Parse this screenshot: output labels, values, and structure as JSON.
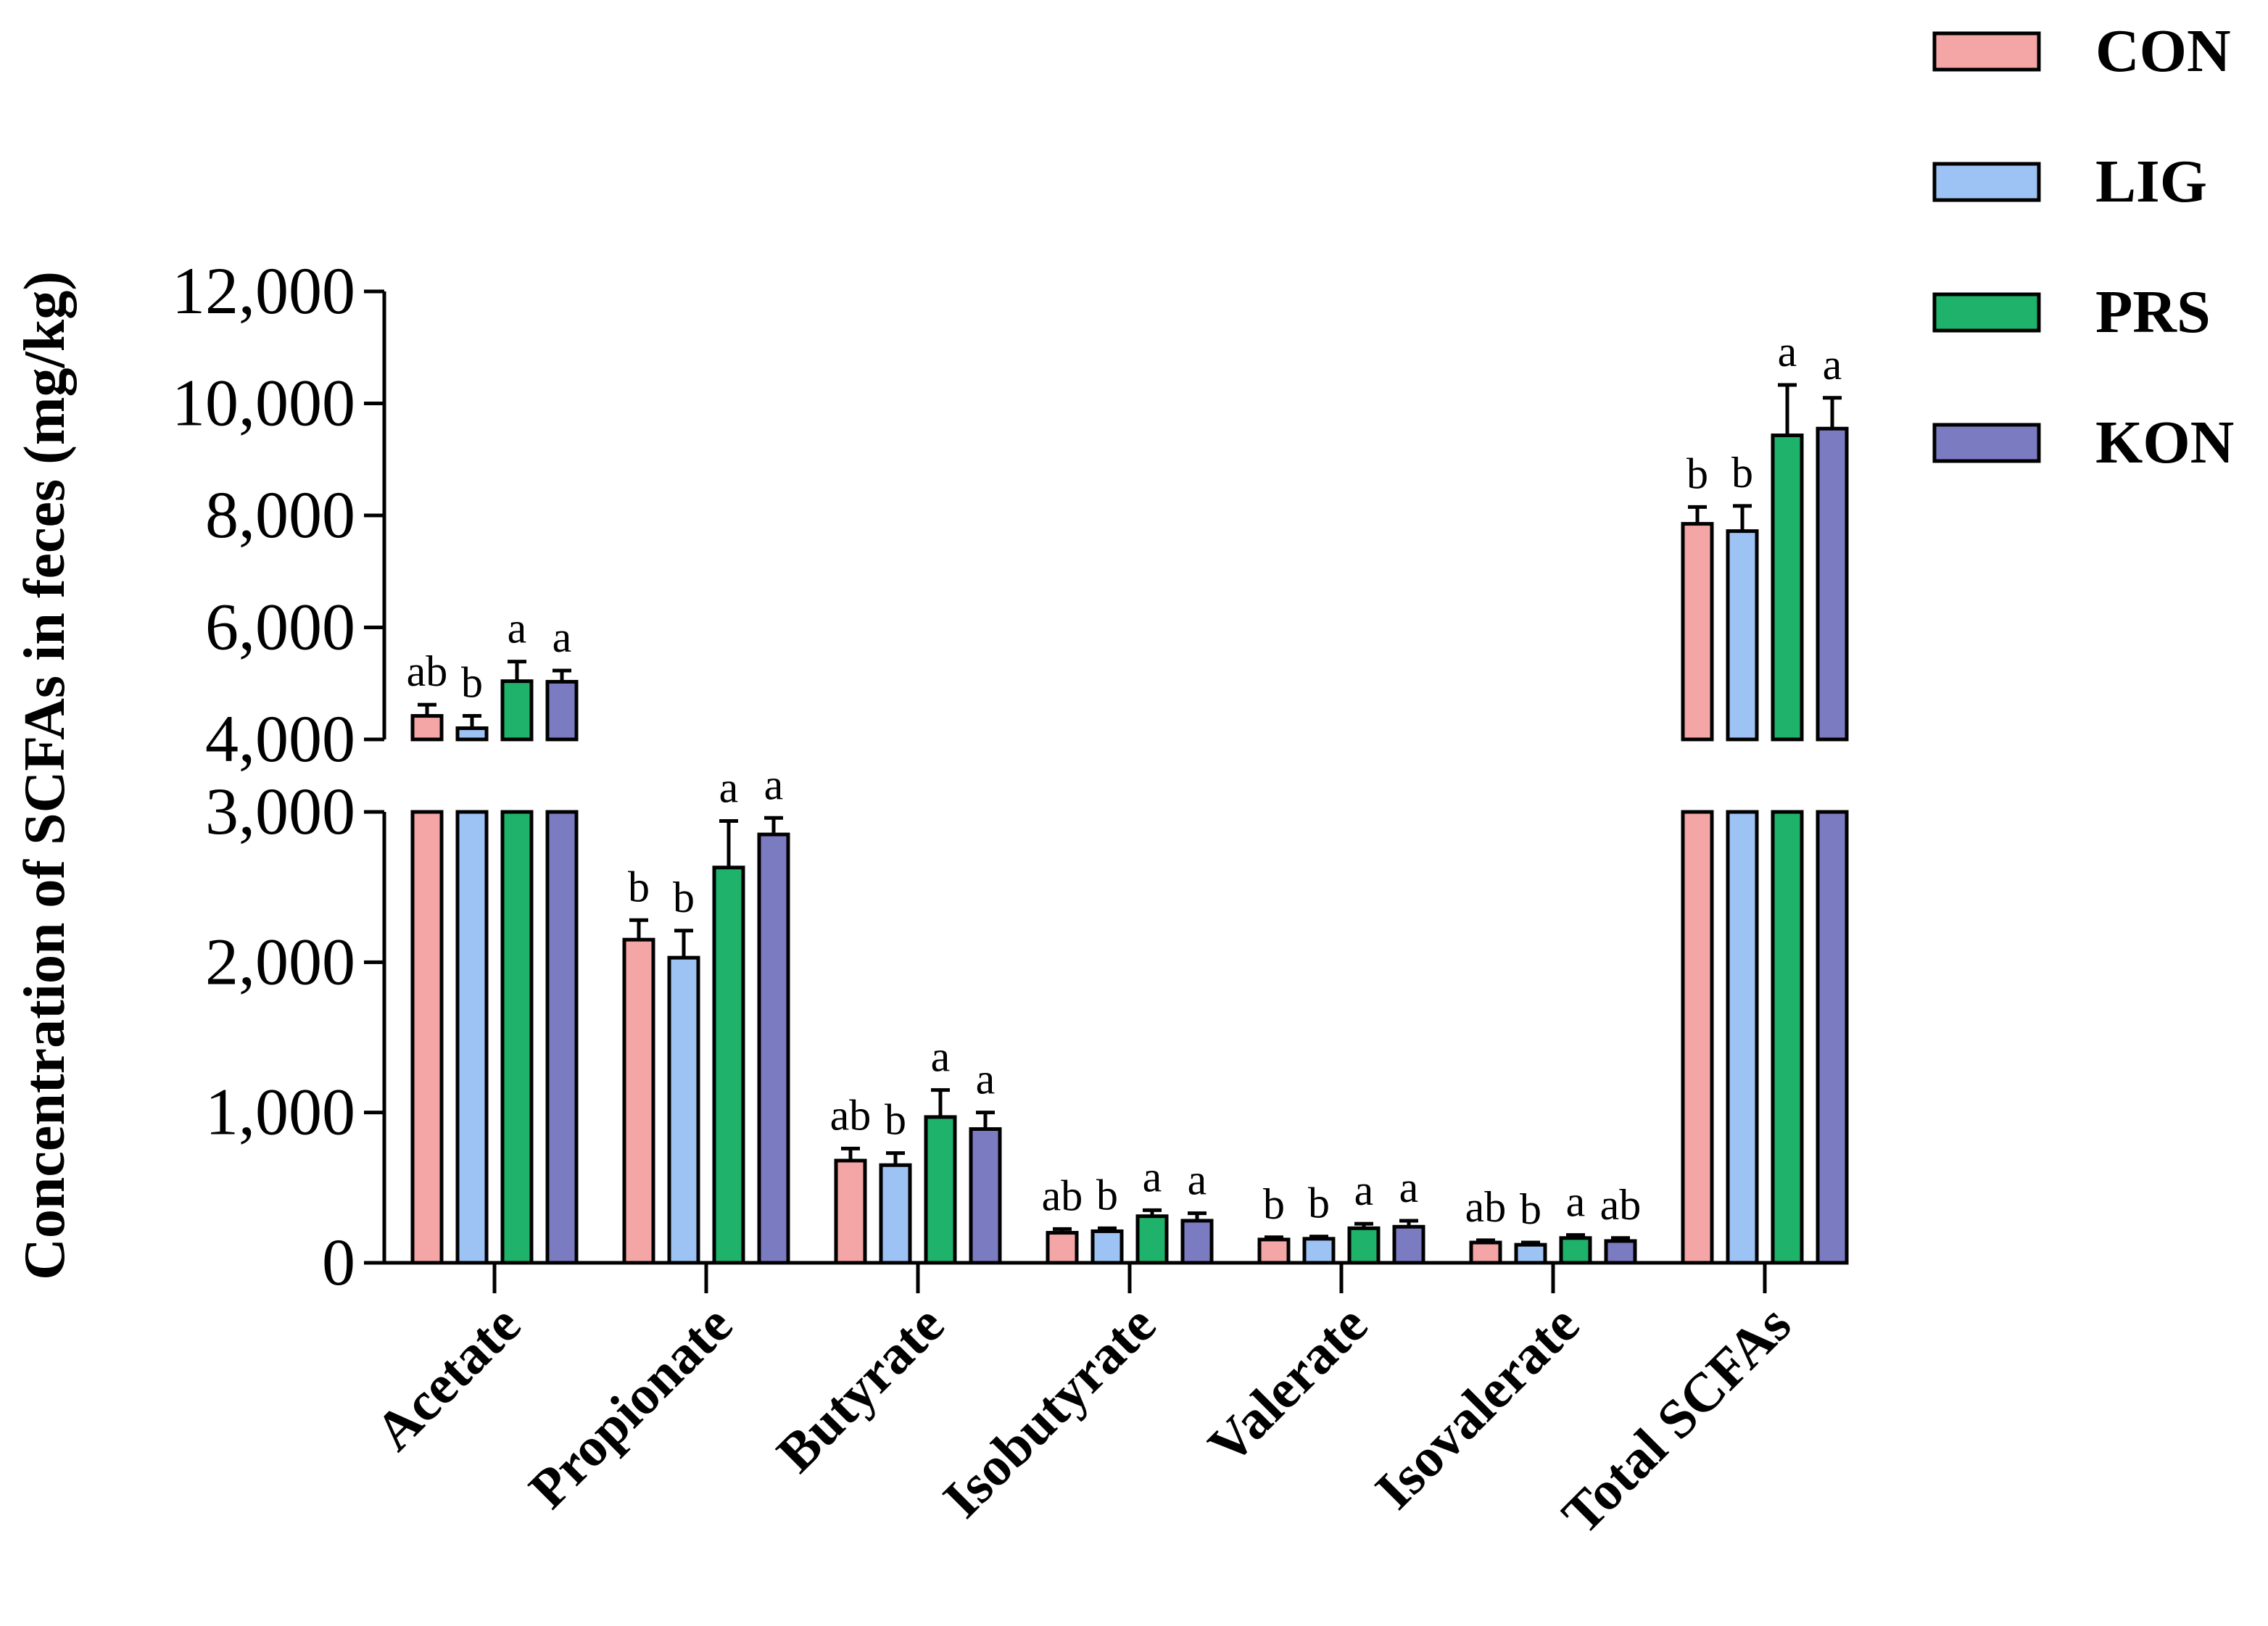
{
  "chart_data": {
    "type": "bar",
    "ylabel": "Concentration of SCFAs in feces (mg/kg)",
    "y_break": [
      3000,
      4000
    ],
    "ylim_lower": [
      0,
      3000
    ],
    "ylim_upper": [
      4000,
      12000
    ],
    "yticks_lower": [
      0,
      1000,
      2000,
      3000
    ],
    "yticks_upper": [
      4000,
      6000,
      8000,
      10000,
      12000
    ],
    "ytick_labels_lower": [
      "0",
      "1,000",
      "2,000",
      "3,000"
    ],
    "ytick_labels_upper": [
      "4,000",
      "6,000",
      "8,000",
      "10,000",
      "12,000"
    ],
    "categories": [
      "Acetate",
      "Propionate",
      "Butyrate",
      "Isobutyrate",
      "Valerate",
      "Isovalerate",
      "Total SCFAs"
    ],
    "series": [
      {
        "name": "CON",
        "color": "#F4A6A6",
        "values": [
          4420,
          2150,
          680,
          200,
          155,
          135,
          7850
        ],
        "errors": [
          200,
          130,
          80,
          25,
          15,
          15,
          300
        ],
        "letters": [
          "ab",
          "b",
          "ab",
          "ab",
          "b",
          "ab",
          "b"
        ]
      },
      {
        "name": "LIG",
        "color": "#9DC3F5",
        "values": [
          4200,
          2030,
          650,
          210,
          160,
          120,
          7720
        ],
        "errors": [
          220,
          180,
          80,
          20,
          15,
          15,
          450
        ],
        "letters": [
          "b",
          "b",
          "b",
          "b",
          "b",
          "b",
          "b"
        ]
      },
      {
        "name": "PRS",
        "color": "#1FB26A",
        "values": [
          5040,
          2630,
          970,
          310,
          230,
          165,
          9430
        ],
        "errors": [
          350,
          310,
          180,
          40,
          30,
          20,
          900
        ],
        "letters": [
          "a",
          "a",
          "a",
          "a",
          "a",
          "a",
          "a"
        ]
      },
      {
        "name": "KON",
        "color": "#7B7BC2",
        "values": [
          5030,
          2850,
          890,
          280,
          240,
          145,
          9550
        ],
        "errors": [
          200,
          110,
          110,
          50,
          40,
          20,
          550
        ],
        "letters": [
          "a",
          "a",
          "a",
          "a",
          "a",
          "ab",
          "a"
        ]
      }
    ],
    "legend": "top-right"
  }
}
